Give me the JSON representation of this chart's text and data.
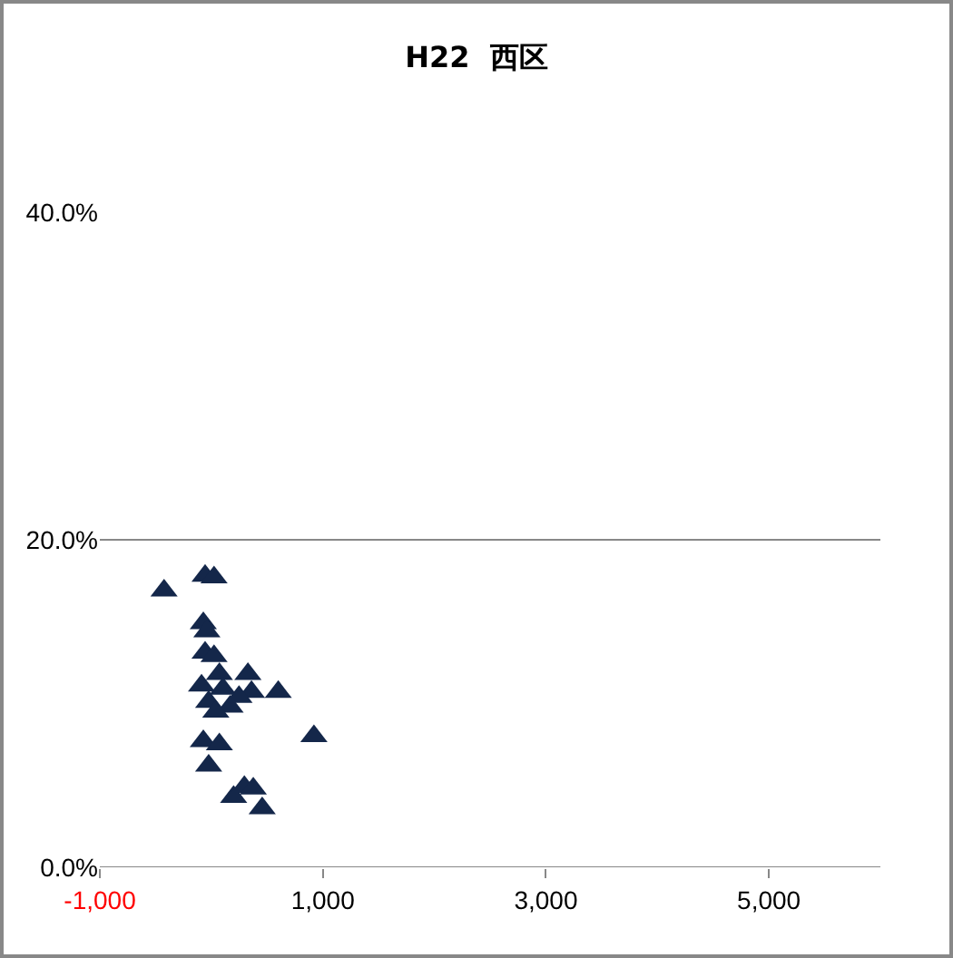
{
  "chart_data": {
    "type": "scatter",
    "title": "H22  西区",
    "marker": "triangle",
    "grid": "y",
    "legend": false,
    "x": [
      -424,
      -56,
      24,
      -72,
      -40,
      -56,
      24,
      -88,
      72,
      -24,
      328,
      360,
      600,
      168,
      40,
      920,
      -72,
      72,
      -24,
      200,
      296,
      376,
      456,
      104,
      248
    ],
    "series": [
      {
        "color": "#14274a",
        "values": [
          16.9,
          17.8,
          17.7,
          14.9,
          14.4,
          13.1,
          12.9,
          11.1,
          11.8,
          10.1,
          11.8,
          10.7,
          10.7,
          9.8,
          9.5,
          8.0,
          7.7,
          7.5,
          6.2,
          4.3,
          4.9,
          4.8,
          3.6,
          10.9,
          10.4
        ]
      }
    ],
    "xlim": [
      -1000,
      6000
    ],
    "xticks": [
      {
        "value": -1000,
        "label": "-1,000"
      },
      {
        "value": 1000,
        "label": "1,000"
      },
      {
        "value": 3000,
        "label": "3,000"
      },
      {
        "value": 5000,
        "label": "5,000"
      }
    ],
    "ylim": [
      0,
      40
    ],
    "yticks": [
      {
        "value": 0,
        "label": "0.0%"
      },
      {
        "value": 20,
        "label": "20.0%"
      },
      {
        "value": 40,
        "label": "40.0%"
      }
    ]
  }
}
